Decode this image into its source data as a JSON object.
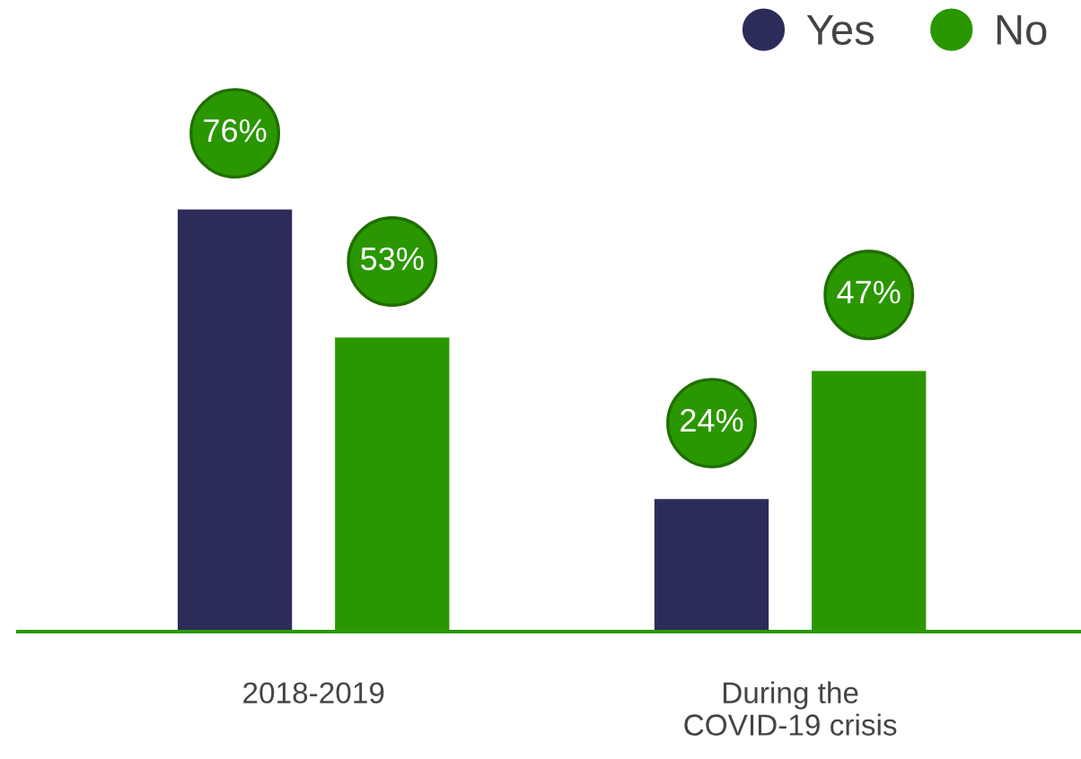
{
  "chart_data": {
    "type": "bar",
    "categories": [
      "2018-2019",
      "During the\nCOVID-19 crisis"
    ],
    "series": [
      {
        "name": "Yes",
        "color": "#2b2c5a",
        "values": [
          76,
          24
        ],
        "value_labels": [
          "76%",
          "24%"
        ]
      },
      {
        "name": "No",
        "color": "#2a9700",
        "values": [
          53,
          47
        ],
        "value_labels": [
          "53%",
          "47%"
        ]
      }
    ],
    "legend": "top right",
    "marker": "circle",
    "grid": false
  }
}
